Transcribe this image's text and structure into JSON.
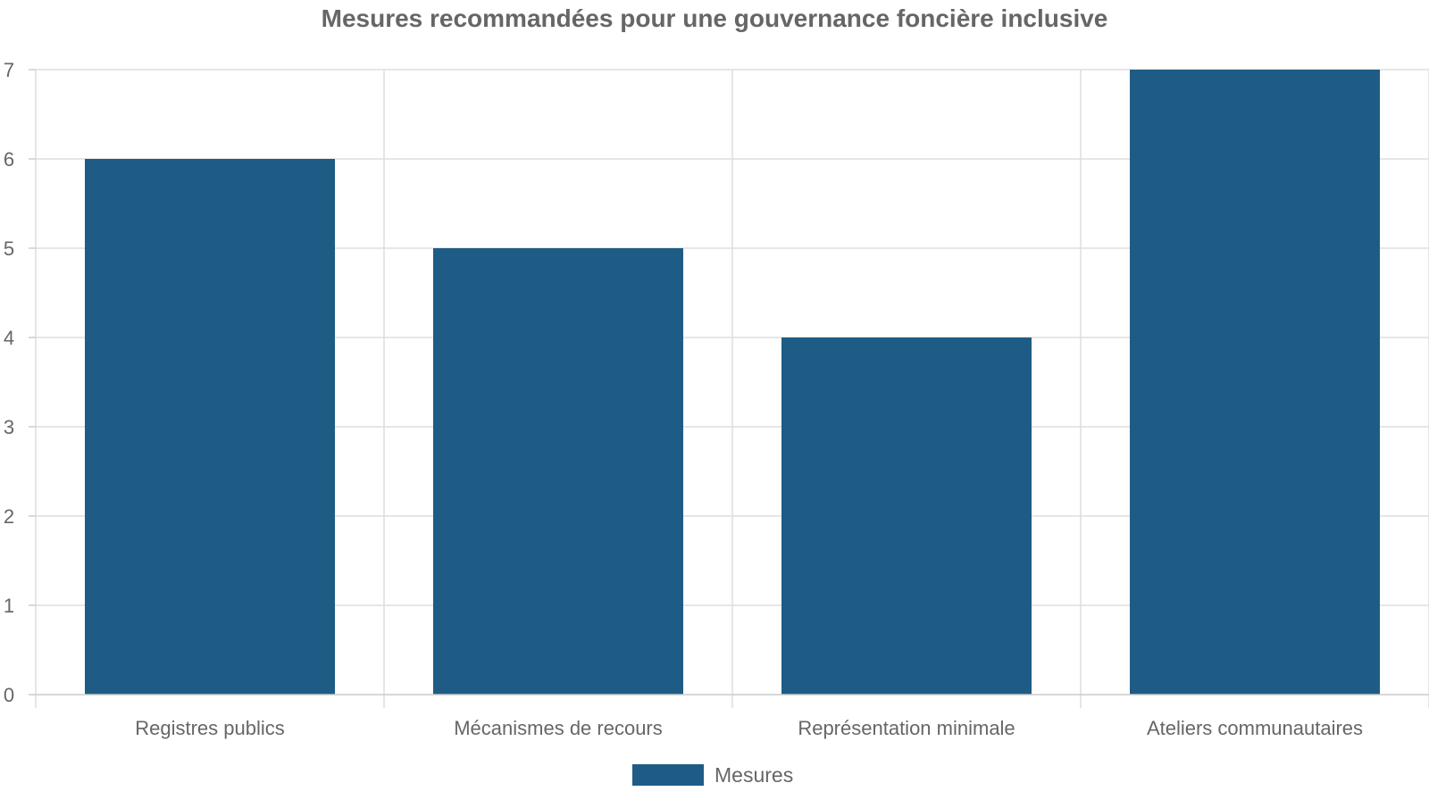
{
  "chart_data": {
    "type": "bar",
    "title": "Mesures recommandées pour une gouvernance foncière inclusive",
    "categories": [
      "Registres publics",
      "Mécanismes de recours",
      "Représentation minimale",
      "Ateliers communautaires"
    ],
    "series": [
      {
        "name": "Mesures",
        "values": [
          6,
          5,
          4,
          7
        ],
        "color": "#1f5c85"
      }
    ],
    "xlabel": "",
    "ylabel": "",
    "ylim": [
      0,
      7
    ],
    "yticks": [
      0,
      1,
      2,
      3,
      4,
      5,
      6,
      7
    ],
    "grid": true,
    "legend_position": "bottom"
  },
  "colors": {
    "title": "#666666",
    "text": "#666666",
    "grid": "#dddddd",
    "axis": "#cccccc"
  }
}
